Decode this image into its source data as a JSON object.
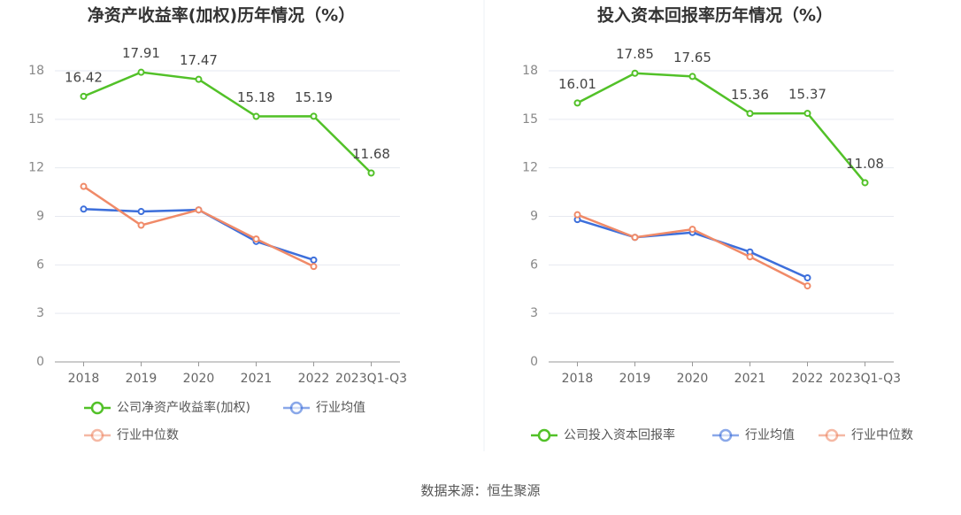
{
  "chart_data": [
    {
      "type": "line",
      "title": "净资产收益率(加权)历年情况（%）",
      "categories": [
        "2018",
        "2019",
        "2020",
        "2021",
        "2022",
        "2023Q1-Q3"
      ],
      "series": [
        {
          "name": "公司净资产收益率(加权)",
          "color": "#52c128",
          "values": [
            16.42,
            17.91,
            17.47,
            15.18,
            15.19,
            11.68
          ]
        },
        {
          "name": "行业均值",
          "color": "#3d6fdb",
          "values": [
            9.45,
            9.3,
            9.4,
            7.45,
            6.3,
            null
          ]
        },
        {
          "name": "行业中位数",
          "color": "#f08a68",
          "values": [
            10.85,
            8.45,
            9.4,
            7.6,
            5.9,
            null
          ]
        }
      ],
      "ylim": [
        0,
        18
      ],
      "yticks": [
        0,
        3,
        6,
        9,
        12,
        15,
        18
      ],
      "grid": true
    },
    {
      "type": "line",
      "title": "投入资本回报率历年情况（%）",
      "categories": [
        "2018",
        "2019",
        "2020",
        "2021",
        "2022",
        "2023Q1-Q3"
      ],
      "series": [
        {
          "name": "公司投入资本回报率",
          "color": "#52c128",
          "values": [
            16.01,
            17.85,
            17.65,
            15.36,
            15.37,
            11.08
          ]
        },
        {
          "name": "行业均值",
          "color": "#3d6fdb",
          "values": [
            8.8,
            7.7,
            8.0,
            6.8,
            5.2,
            null
          ]
        },
        {
          "name": "行业中位数",
          "color": "#f08a68",
          "values": [
            9.1,
            7.7,
            8.2,
            6.5,
            4.7,
            null
          ]
        }
      ],
      "ylim": [
        0,
        18
      ],
      "yticks": [
        0,
        3,
        6,
        9,
        12,
        15,
        18
      ],
      "grid": true
    }
  ],
  "source": "数据来源：恒生聚源"
}
